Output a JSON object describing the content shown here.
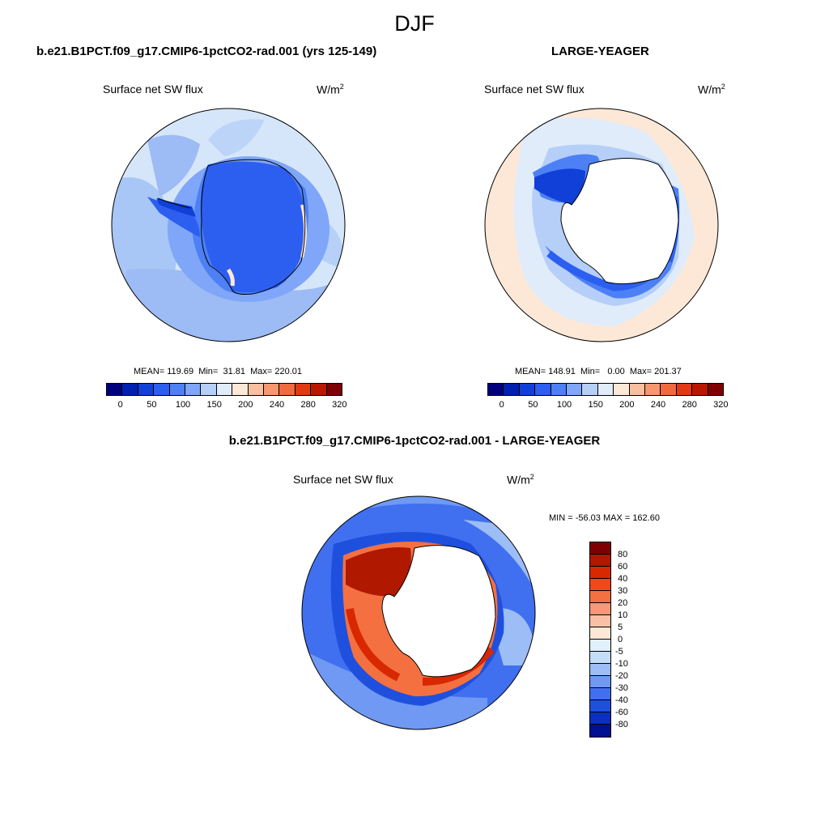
{
  "figure": {
    "season": "DJF"
  },
  "panels": {
    "model": {
      "title": "b.e21.B1PCT.f09_g17.CMIP6-1pctCO2-rad.001 (yrs 125-149)",
      "variable": "Surface net SW flux",
      "units": "W/m",
      "units_sup": "2",
      "stats": "MEAN= 119.69  Min=  31.81  Max= 220.01"
    },
    "obs": {
      "title": "LARGE-YEAGER",
      "variable": "Surface net SW flux",
      "units": "W/m",
      "units_sup": "2",
      "stats": "MEAN= 148.91  Min=   0.00  Max= 201.37"
    },
    "diff": {
      "title": "b.e21.B1PCT.f09_g17.CMIP6-1pctCO2-rad.001 - LARGE-YEAGER",
      "variable": "Surface net SW flux",
      "units": "W/m",
      "units_sup": "2",
      "stats": "MIN = -56.03 MAX = 162.60"
    }
  },
  "colorbars": {
    "abs": {
      "colors": [
        "#00007f",
        "#0020b0",
        "#1040d8",
        "#2c5ef0",
        "#4d80f5",
        "#7fa6f8",
        "#b5cff8",
        "#e0ecfa",
        "#fde8d8",
        "#f9c0a0",
        "#f59870",
        "#f06a40",
        "#e03a14",
        "#b81800",
        "#7f0000"
      ],
      "tick_labels": [
        "0",
        "50",
        "100",
        "150",
        "200",
        "240",
        "280",
        "320"
      ]
    },
    "diff": {
      "colors": [
        "#7f0000",
        "#b01800",
        "#d82800",
        "#f04818",
        "#f57040",
        "#f7987a",
        "#f9c0a5",
        "#fde7d6",
        "#e2effc",
        "#c4dcf8",
        "#9cbdf5",
        "#6f99f2",
        "#4070ef",
        "#1f50dd",
        "#0a30c0",
        "#00108f"
      ],
      "tick_labels": [
        "80",
        "60",
        "40",
        "30",
        "20",
        "10",
        "5",
        "0",
        "-5",
        "-10",
        "-20",
        "-30",
        "-40",
        "-60",
        "-80"
      ]
    }
  }
}
